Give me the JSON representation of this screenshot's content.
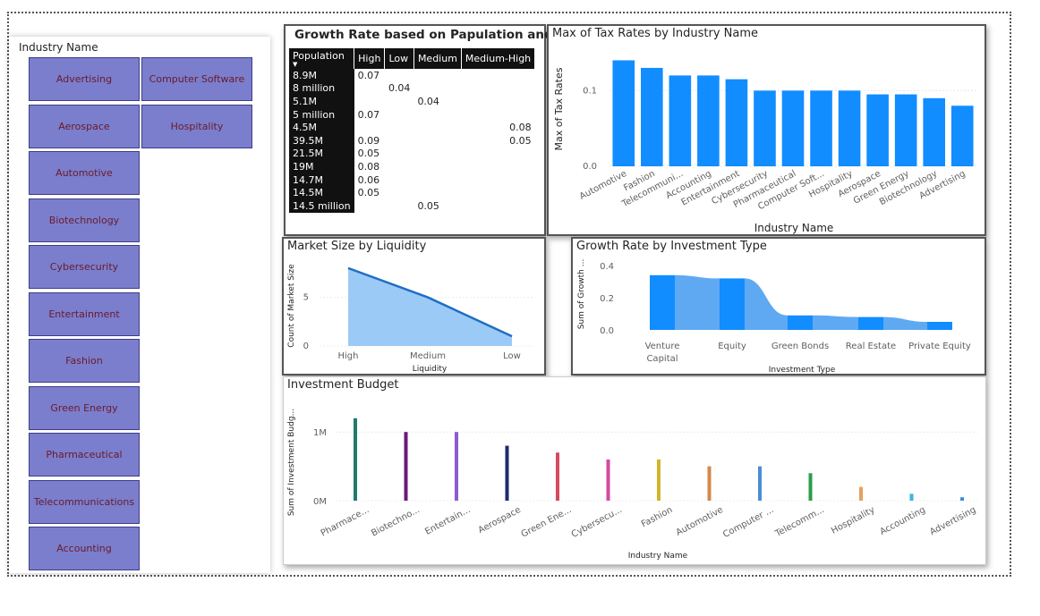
{
  "slicer": {
    "title": "Industry Name",
    "items_col1": [
      "Advertising",
      "Aerospace",
      "Automotive",
      "Biotechnology",
      "Cybersecurity",
      "Entertainment",
      "Fashion",
      "Green Energy",
      "Pharmaceutical",
      "Telecommunications",
      "Accounting"
    ],
    "items_col2": [
      "Computer Software",
      "Hospitality"
    ]
  },
  "matrix": {
    "title": "Growth Rate based on Papulation and risk",
    "headers": [
      "Population",
      "High",
      "Low",
      "Medium",
      "Medium-High"
    ],
    "rows": [
      {
        "label": "8.9M",
        "cells": [
          "0.07",
          "",
          "",
          ""
        ]
      },
      {
        "label": "8 million",
        "cells": [
          "",
          "0.04",
          "",
          ""
        ]
      },
      {
        "label": "5.1M",
        "cells": [
          "",
          "",
          "0.04",
          ""
        ]
      },
      {
        "label": "5 million",
        "cells": [
          "0.07",
          "",
          "",
          ""
        ]
      },
      {
        "label": "4.5M",
        "cells": [
          "",
          "",
          "",
          "0.08"
        ]
      },
      {
        "label": "39.5M",
        "cells": [
          "0.09",
          "",
          "",
          "0.05"
        ]
      },
      {
        "label": "21.5M",
        "cells": [
          "0.05",
          "",
          "",
          ""
        ]
      },
      {
        "label": "19M",
        "cells": [
          "0.08",
          "",
          "",
          ""
        ]
      },
      {
        "label": "14.7M",
        "cells": [
          "0.06",
          "",
          "",
          ""
        ]
      },
      {
        "label": "14.5M",
        "cells": [
          "0.05",
          "",
          "",
          ""
        ]
      },
      {
        "label": "14.5 million",
        "cells": [
          "",
          "",
          "0.05",
          ""
        ]
      }
    ]
  },
  "tax_chart": {
    "title": "Max of Tax Rates by Industry Name",
    "chart_data": {
      "type": "bar",
      "categories": [
        "Automotive",
        "Fashion",
        "Telecommuni...",
        "Accounting",
        "Entertainment",
        "Cybersecurity",
        "Pharmaceutical",
        "Computer Soft...",
        "Hospitality",
        "Aerospace",
        "Green Energy",
        "Biotechnology",
        "Advertising"
      ],
      "values": [
        0.14,
        0.13,
        0.12,
        0.12,
        0.115,
        0.1,
        0.1,
        0.1,
        0.1,
        0.095,
        0.095,
        0.09,
        0.08
      ],
      "xlabel": "Industry Name",
      "ylabel": "Max of Tax Rates",
      "yticks": [
        "0.0",
        "0.1"
      ],
      "ylim": [
        0,
        0.15
      ],
      "color": "#118dff"
    }
  },
  "market_chart": {
    "title": "Market Size by Liquidity",
    "chart_data": {
      "type": "area",
      "categories": [
        "High",
        "Medium",
        "Low"
      ],
      "values": [
        8,
        5,
        1
      ],
      "xlabel": "Liquidity",
      "ylabel": "Count of Market Size",
      "yticks": [
        "0",
        "5"
      ],
      "ylim": [
        0,
        9
      ],
      "color": "#118dff"
    }
  },
  "invest_type_chart": {
    "title": "Growth Rate by Investment Type",
    "chart_data": {
      "type": "area",
      "categories": [
        "Venture Capital",
        "Equity",
        "Green Bonds",
        "Real Estate",
        "Private Equity"
      ],
      "tick_labels": [
        [
          "Venture",
          "Capital"
        ],
        [
          "Equity"
        ],
        [
          "Green Bonds"
        ],
        [
          "Real Estate"
        ],
        [
          "Private Equity"
        ]
      ],
      "values": [
        0.34,
        0.32,
        0.09,
        0.08,
        0.05
      ],
      "xlabel": "Investment Type",
      "ylabel": "Sum of Growth ...",
      "yticks": [
        "0.0",
        "0.2",
        "0.4"
      ],
      "ylim": [
        0,
        0.4
      ],
      "color": "#118dff"
    }
  },
  "budget_chart": {
    "title": "Investment Budget",
    "chart_data": {
      "type": "bar",
      "categories": [
        "Pharmace...",
        "Biotechno...",
        "Entertain...",
        "Aerospace",
        "Green Ene...",
        "Cybersecu...",
        "Fashion",
        "Automotive",
        "Computer ...",
        "Telecomm...",
        "Hospitality",
        "Accounting",
        "Advertising"
      ],
      "values": [
        1200000,
        1000000,
        1000000,
        800000,
        700000,
        600000,
        600000,
        500000,
        500000,
        400000,
        200000,
        100000,
        50000
      ],
      "colors": [
        "#1f7a6e",
        "#6b1a7a",
        "#8c5bd4",
        "#1f2a6e",
        "#d44a5e",
        "#d44a9e",
        "#d4b42a",
        "#d4884a",
        "#4a8ed4",
        "#2a9e4a",
        "#e8a060",
        "#3ab4e0",
        "#3a8ee0"
      ],
      "xlabel": "Industry Name",
      "ylabel": "Sum of Investment Budg...",
      "yticks": [
        "0M",
        "1M"
      ],
      "ylim": [
        0,
        1250000
      ]
    }
  }
}
